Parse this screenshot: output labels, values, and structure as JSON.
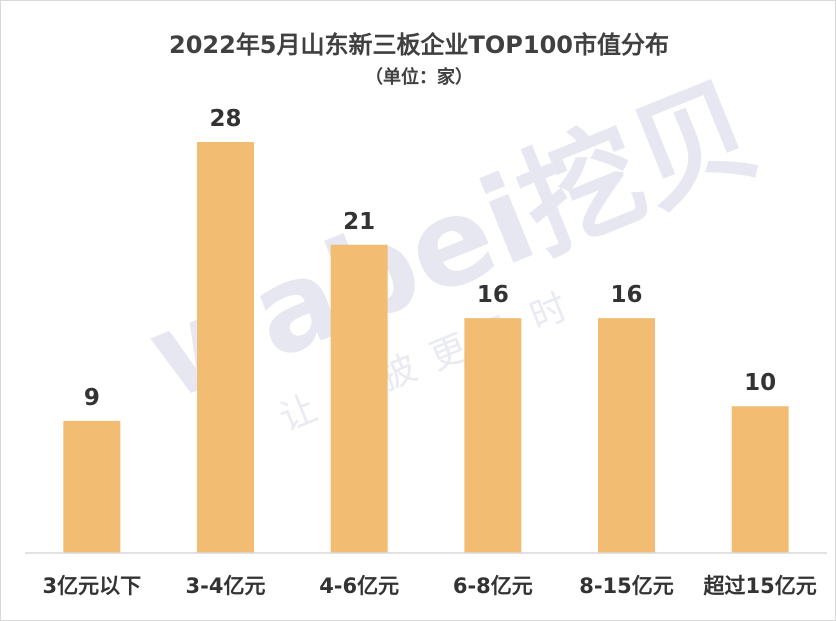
{
  "chart_data": {
    "type": "bar",
    "title": "2022年5月山东新三板企业TOP100市值分布",
    "subtitle": "（单位：家）",
    "categories": [
      "3亿元以下",
      "3-4亿元",
      "4-6亿元",
      "6-8亿元",
      "8-15亿元",
      "超过15亿元"
    ],
    "values": [
      9,
      28,
      21,
      16,
      16,
      10
    ],
    "ylim": [
      0,
      30
    ],
    "grid": false,
    "legend": "none",
    "colors": {
      "bar": "#F2BD72",
      "axis": "#d9d9d9",
      "text": "#333333"
    }
  },
  "watermark": {
    "logo": "wabei挖贝",
    "tagline": "让信披更及时"
  }
}
